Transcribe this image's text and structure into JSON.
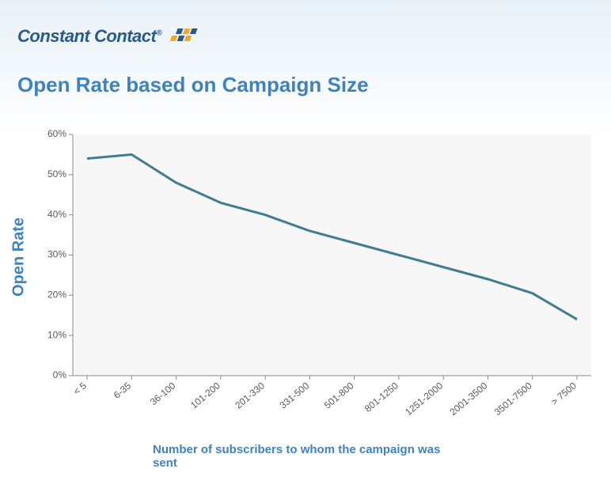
{
  "brand": {
    "name": "Constant Contact",
    "name_color": "#2a5a8a",
    "swish_colors": [
      "#f5a623",
      "#2a5a8a"
    ]
  },
  "chart": {
    "type": "line",
    "title": "Open Rate based on Campaign Size",
    "title_color": "#3e83bf",
    "title_fontsize": 26,
    "ylabel": "Open Rate",
    "ylabel_color": "#3e83bf",
    "ylabel_fontsize": 20,
    "xlabel": "Number of subscribers to whom the campaign was sent",
    "xlabel_color": "#3e83bf",
    "xlabel_fontsize": 15,
    "categories": [
      "< 5",
      "6-35",
      "36-100",
      "101-200",
      "201-330",
      "331-500",
      "501-800",
      "801-1250",
      "1251-2000",
      "2001-3500",
      "3501-7500",
      "> 7500"
    ],
    "values": [
      54,
      55,
      48,
      43,
      40,
      36,
      33,
      30,
      27,
      24,
      20.5,
      14
    ],
    "line_color": "#3f7d91",
    "line_width": 3,
    "ylim": [
      0,
      60
    ],
    "ytick_step": 10,
    "ytick_format_pct": true,
    "plot_bg": "#f7f7f7",
    "page_bg_gradient": [
      "#e8f1f8",
      "#ffffff"
    ],
    "axis_color": "#888888",
    "tick_label_color": "#5a5a5a",
    "tick_fontsize": 12
  }
}
